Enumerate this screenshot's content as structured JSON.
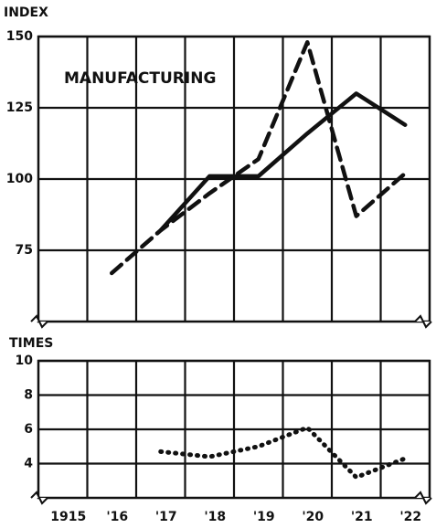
{
  "chart_data": [
    {
      "type": "line",
      "y_label": "INDEX",
      "annotation": "MANUFACTURING",
      "ylim": [
        50,
        150
      ],
      "yticks": [
        75,
        100,
        125,
        150
      ],
      "grid": true,
      "series": [
        {
          "color": "#111111",
          "style": "solid",
          "values": [
            null,
            null,
            82,
            101,
            101,
            116,
            130,
            119
          ]
        },
        {
          "color": "#111111",
          "style": "dashed",
          "values": [
            null,
            67,
            82,
            95,
            107,
            148,
            87,
            102
          ]
        }
      ]
    },
    {
      "type": "line",
      "y_label": "TIMES",
      "categories": [
        "1915",
        "'16",
        "'17",
        "'18",
        "'19",
        "'20",
        "'21",
        "'22"
      ],
      "ylim": [
        2,
        10
      ],
      "yticks": [
        4,
        6,
        8,
        10
      ],
      "grid": true,
      "series": [
        {
          "color": "#111111",
          "style": "dotted",
          "values": [
            null,
            null,
            4.7,
            4.4,
            5.0,
            6.1,
            3.2,
            4.3
          ]
        }
      ]
    }
  ]
}
